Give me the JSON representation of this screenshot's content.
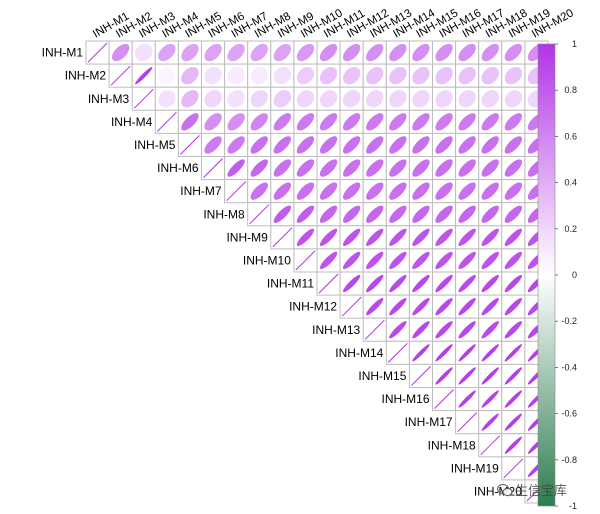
{
  "chart_data": {
    "type": "heatmap",
    "subtype": "correlation-ellipse-upper-triangle",
    "title": "",
    "xlabel": "",
    "ylabel": "",
    "variables": [
      "INH-M1",
      "INH-M2",
      "INH-M3",
      "INH-M4",
      "INH-M5",
      "INH-M6",
      "INH-M7",
      "INH-M8",
      "INH-M9",
      "INH-M10",
      "INH-M11",
      "INH-M12",
      "INH-M13",
      "INH-M14",
      "INH-M15",
      "INH-M16",
      "INH-M17",
      "INH-M18",
      "INH-M19",
      "INH-M20"
    ],
    "correlation_matrix": [
      [
        1.0,
        0.55,
        0.15,
        0.45,
        0.45,
        0.45,
        0.45,
        0.45,
        0.45,
        0.5,
        0.55,
        0.55,
        0.55,
        0.55,
        0.55,
        0.55,
        0.55,
        0.55,
        0.55,
        0.55
      ],
      [
        0.55,
        1.0,
        0.95,
        0.05,
        0.35,
        0.15,
        0.1,
        0.1,
        0.15,
        0.25,
        0.3,
        0.3,
        0.3,
        0.3,
        0.3,
        0.3,
        0.3,
        0.3,
        0.3,
        0.3
      ],
      [
        0.15,
        0.95,
        1.0,
        0.15,
        0.35,
        0.2,
        0.15,
        0.2,
        0.25,
        0.2,
        0.2,
        0.2,
        0.2,
        0.2,
        0.2,
        0.2,
        0.2,
        0.2,
        0.2,
        0.2
      ],
      [
        0.45,
        0.05,
        0.15,
        1.0,
        0.7,
        0.55,
        0.55,
        0.6,
        0.65,
        0.65,
        0.65,
        0.65,
        0.65,
        0.65,
        0.65,
        0.65,
        0.65,
        0.65,
        0.65,
        0.65
      ],
      [
        0.45,
        0.35,
        0.35,
        0.7,
        1.0,
        0.65,
        0.65,
        0.7,
        0.7,
        0.7,
        0.7,
        0.7,
        0.7,
        0.7,
        0.7,
        0.7,
        0.7,
        0.7,
        0.7,
        0.7
      ],
      [
        0.45,
        0.15,
        0.2,
        0.55,
        0.65,
        1.0,
        0.8,
        0.75,
        0.7,
        0.7,
        0.7,
        0.7,
        0.7,
        0.7,
        0.7,
        0.7,
        0.7,
        0.7,
        0.7,
        0.7
      ],
      [
        0.45,
        0.1,
        0.15,
        0.55,
        0.65,
        0.8,
        1.0,
        0.7,
        0.7,
        0.7,
        0.7,
        0.7,
        0.7,
        0.7,
        0.7,
        0.7,
        0.7,
        0.7,
        0.7,
        0.7
      ],
      [
        0.45,
        0.1,
        0.2,
        0.6,
        0.7,
        0.75,
        0.7,
        1.0,
        0.8,
        0.8,
        0.75,
        0.75,
        0.75,
        0.75,
        0.75,
        0.75,
        0.75,
        0.75,
        0.75,
        0.75
      ],
      [
        0.45,
        0.15,
        0.25,
        0.65,
        0.7,
        0.7,
        0.7,
        0.8,
        1.0,
        0.85,
        0.85,
        0.85,
        0.85,
        0.85,
        0.85,
        0.85,
        0.85,
        0.85,
        0.85,
        0.85
      ],
      [
        0.5,
        0.25,
        0.2,
        0.65,
        0.7,
        0.7,
        0.7,
        0.8,
        0.85,
        1.0,
        0.85,
        0.85,
        0.85,
        0.85,
        0.85,
        0.85,
        0.85,
        0.85,
        0.85,
        0.85
      ],
      [
        0.55,
        0.3,
        0.2,
        0.65,
        0.7,
        0.7,
        0.7,
        0.75,
        0.85,
        0.85,
        1.0,
        0.9,
        0.9,
        0.9,
        0.9,
        0.9,
        0.9,
        0.9,
        0.9,
        0.9
      ],
      [
        0.55,
        0.3,
        0.2,
        0.65,
        0.7,
        0.7,
        0.7,
        0.75,
        0.85,
        0.85,
        0.9,
        1.0,
        0.9,
        0.9,
        0.9,
        0.9,
        0.9,
        0.9,
        0.9,
        0.9
      ],
      [
        0.55,
        0.3,
        0.2,
        0.65,
        0.7,
        0.7,
        0.7,
        0.75,
        0.85,
        0.85,
        0.9,
        0.9,
        1.0,
        0.9,
        0.9,
        0.9,
        0.9,
        0.9,
        0.9,
        0.9
      ],
      [
        0.55,
        0.3,
        0.2,
        0.65,
        0.7,
        0.7,
        0.7,
        0.75,
        0.85,
        0.85,
        0.9,
        0.9,
        0.9,
        1.0,
        0.95,
        0.95,
        0.95,
        0.95,
        0.95,
        0.95
      ],
      [
        0.55,
        0.3,
        0.2,
        0.65,
        0.7,
        0.7,
        0.7,
        0.75,
        0.85,
        0.85,
        0.9,
        0.9,
        0.9,
        0.95,
        1.0,
        0.95,
        0.95,
        0.95,
        0.95,
        0.95
      ],
      [
        0.55,
        0.3,
        0.2,
        0.65,
        0.7,
        0.7,
        0.7,
        0.75,
        0.85,
        0.85,
        0.9,
        0.9,
        0.9,
        0.95,
        0.95,
        1.0,
        0.95,
        0.95,
        0.95,
        0.95
      ],
      [
        0.55,
        0.3,
        0.2,
        0.65,
        0.7,
        0.7,
        0.7,
        0.75,
        0.85,
        0.85,
        0.9,
        0.9,
        0.9,
        0.95,
        0.95,
        0.95,
        1.0,
        0.95,
        0.95,
        0.95
      ],
      [
        0.55,
        0.3,
        0.2,
        0.65,
        0.7,
        0.7,
        0.7,
        0.75,
        0.85,
        0.85,
        0.9,
        0.9,
        0.9,
        0.95,
        0.95,
        0.95,
        0.95,
        1.0,
        0.95,
        0.95
      ],
      [
        0.55,
        0.3,
        0.2,
        0.65,
        0.7,
        0.7,
        0.7,
        0.75,
        0.85,
        0.85,
        0.9,
        0.9,
        0.9,
        0.95,
        0.95,
        0.95,
        0.95,
        0.95,
        1.0,
        0.95
      ],
      [
        0.55,
        0.3,
        0.2,
        0.65,
        0.7,
        0.7,
        0.7,
        0.75,
        0.85,
        0.85,
        0.9,
        0.9,
        0.9,
        0.95,
        0.95,
        0.95,
        0.95,
        0.95,
        0.95,
        1.0
      ]
    ],
    "colorbar": {
      "range": [
        -1,
        1
      ],
      "ticks": [
        "1",
        "0.8",
        "0.6",
        "0.4",
        "0.2",
        "0",
        "-0.2",
        "-0.4",
        "-0.6",
        "-0.8",
        "-1"
      ],
      "colors": {
        "negative": "#2e7d4f",
        "zero": "#ffffff",
        "positive": "#b233e8"
      }
    },
    "diagonal_style": "diagonal-line",
    "grid": true,
    "legend": "right-colorbar"
  },
  "watermark": {
    "text": "生信宝库"
  }
}
